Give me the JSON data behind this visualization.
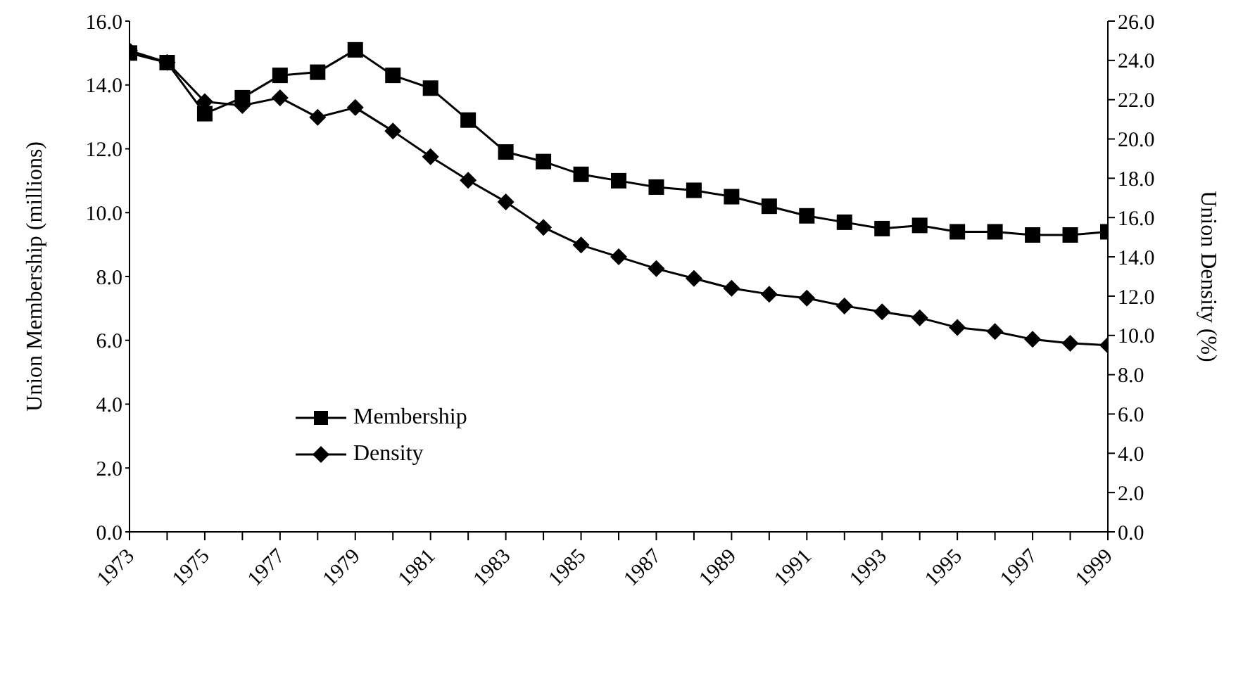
{
  "chart_data": {
    "type": "line",
    "ylabel": "Union Membership (millions)",
    "y2label": "Union Density (%)",
    "x": [
      1973,
      1974,
      1975,
      1976,
      1977,
      1978,
      1979,
      1980,
      1981,
      1982,
      1983,
      1984,
      1985,
      1986,
      1987,
      1988,
      1989,
      1990,
      1991,
      1992,
      1993,
      1994,
      1995,
      1996,
      1997,
      1998,
      1999
    ],
    "series": [
      {
        "name": "Membership",
        "color": "#000000",
        "marker": "square",
        "values": [
          15.0,
          14.7,
          13.1,
          13.6,
          14.3,
          14.4,
          15.1,
          14.3,
          13.9,
          12.9,
          11.9,
          11.6,
          11.2,
          11.0,
          10.8,
          10.7,
          10.5,
          10.2,
          9.9,
          9.7,
          9.5,
          9.6,
          9.4,
          9.4,
          9.3,
          9.3,
          9.4
        ]
      },
      {
        "name": "Density",
        "color": "#000000",
        "marker": "diamond",
        "axis": "y2",
        "values": [
          24.5,
          23.9,
          21.9,
          21.7,
          22.1,
          21.1,
          21.6,
          20.4,
          19.1,
          17.9,
          16.8,
          15.5,
          14.6,
          14.0,
          13.4,
          12.9,
          12.4,
          12.1,
          11.9,
          11.5,
          11.2,
          10.9,
          10.4,
          10.2,
          9.8,
          9.6,
          9.5
        ]
      }
    ],
    "xlim": [
      1973,
      1999
    ],
    "xticks": [
      1973,
      {
        "value": 1974,
        "label": null
      },
      1975,
      {
        "value": 1976,
        "label": null
      },
      1977,
      {
        "value": 1978,
        "label": null
      },
      1979,
      {
        "value": 1980,
        "label": null
      },
      1981,
      {
        "value": 1982,
        "label": null
      },
      1983,
      {
        "value": 1984,
        "label": null
      },
      1985,
      {
        "value": 1986,
        "label": null
      },
      1987,
      {
        "value": 1988,
        "label": null
      },
      1989,
      {
        "value": 1990,
        "label": null
      },
      1991,
      {
        "value": 1992,
        "label": null
      },
      1993,
      {
        "value": 1994,
        "label": null
      },
      1995,
      {
        "value": 1996,
        "label": null
      },
      1997,
      {
        "value": 1998,
        "label": null
      },
      1999
    ],
    "ylim": [
      0,
      16
    ],
    "yticks": [
      {
        "value": 0,
        "label": "0.0"
      },
      {
        "value": 2,
        "label": "2.0"
      },
      {
        "value": 4,
        "label": "4.0"
      },
      {
        "value": 6,
        "label": "6.0"
      },
      {
        "value": 8,
        "label": "8.0"
      },
      {
        "value": 10,
        "label": "10.0"
      },
      {
        "value": 12,
        "label": "12.0"
      },
      {
        "value": 14,
        "label": "14.0"
      },
      {
        "value": 16,
        "label": "16.0"
      }
    ],
    "y2lim": [
      0,
      26
    ],
    "y2ticks": [
      {
        "value": 0,
        "label": "0.0"
      },
      {
        "value": 2,
        "label": "2.0"
      },
      {
        "value": 4,
        "label": "4.0"
      },
      {
        "value": 6,
        "label": "6.0"
      },
      {
        "value": 8,
        "label": "8.0"
      },
      {
        "value": 10,
        "label": "10.0"
      },
      {
        "value": 12,
        "label": "12.0"
      },
      {
        "value": 14,
        "label": "14.0"
      },
      {
        "value": 16,
        "label": "16.0"
      },
      {
        "value": 18,
        "label": "18.0"
      },
      {
        "value": 20,
        "label": "20.0"
      },
      {
        "value": 22,
        "label": "22.0"
      },
      {
        "value": 24,
        "label": "24.0"
      },
      {
        "value": 26,
        "label": "26.0"
      }
    ],
    "grid": false,
    "legend": "left",
    "line_style": "solid"
  }
}
